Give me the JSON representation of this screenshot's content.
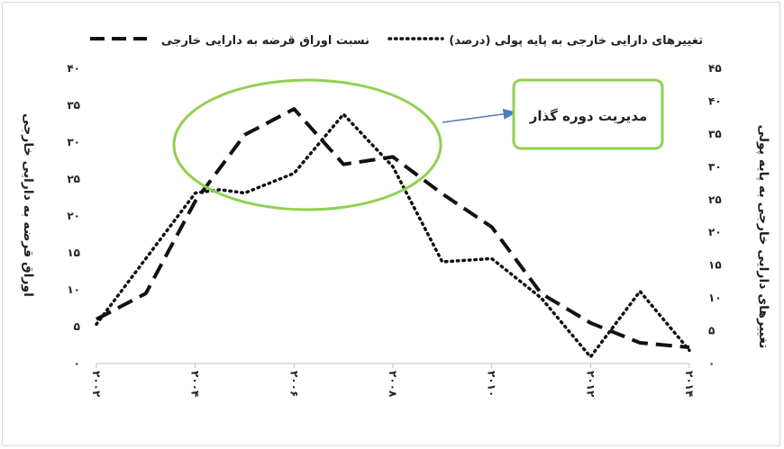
{
  "chart_data": {
    "type": "line",
    "x": [
      2002,
      2003,
      2004,
      2005,
      2006,
      2007,
      2008,
      2009,
      2010,
      2011,
      2012,
      2013,
      2014
    ],
    "x_tick_labels": [
      "۲۰۰۲",
      "۲۰۰۴",
      "۲۰۰۶",
      "۲۰۰۸",
      "۲۰۱۰",
      "۲۰۱۲",
      "۲۰۱۴"
    ],
    "x_ticks": [
      2002,
      2004,
      2006,
      2008,
      2010,
      2012,
      2014
    ],
    "xlim": [
      2002,
      2014
    ],
    "left_axis": {
      "label": "اوراق قرضه به دارایی خارجی",
      "ylim": [
        0,
        40
      ],
      "tick_values": [
        0,
        5,
        10,
        15,
        20,
        25,
        30,
        35,
        40
      ],
      "tick_labels": [
        "۰",
        "۵",
        "۱۰",
        "۱۵",
        "۲۰",
        "۲۵",
        "۳۰",
        "۳۵",
        "۴۰"
      ]
    },
    "right_axis": {
      "label": "تغییرهای دارایی خارجی به پایه پولی",
      "ylim": [
        0,
        45
      ],
      "tick_values": [
        0,
        5,
        10,
        15,
        20,
        25,
        30,
        35,
        40,
        45
      ],
      "tick_labels": [
        "۰",
        "۵",
        "۱۰",
        "۱۵",
        "۲۰",
        "۲۵",
        "۳۰",
        "۳۵",
        "۴۰",
        "۴۵"
      ]
    },
    "series": [
      {
        "name": "نسبت اوراق قرضه به دارایی خارجی",
        "axis": "left",
        "style": "dashed",
        "x": [
          2002,
          2003,
          2004,
          2005,
          2006,
          2007,
          2008,
          2009,
          2010,
          2011,
          2012,
          2013,
          2014
        ],
        "values": [
          6,
          9.5,
          22,
          31,
          34.5,
          27,
          28,
          23,
          18.5,
          9.5,
          5.5,
          2.8,
          2.2
        ]
      },
      {
        "name": "تغییرهای دارایی خارجی به پایه پولی (درصد)",
        "axis": "right",
        "style": "dotted",
        "x": [
          2002,
          2003,
          2004,
          2004.5,
          2005,
          2006,
          2007,
          2008,
          2009,
          2010,
          2011,
          2012,
          2013,
          2014
        ],
        "values": [
          6,
          16,
          26,
          26.5,
          26,
          29,
          38,
          30,
          15.5,
          16,
          10,
          1,
          11,
          2
        ]
      }
    ],
    "legend": "top",
    "grid": false,
    "annotation": {
      "text": "مدیریت دوره گذار"
    },
    "colors": {
      "series": "#111111",
      "highlight": "#92d050",
      "arrow": "#4a7ebb"
    }
  }
}
